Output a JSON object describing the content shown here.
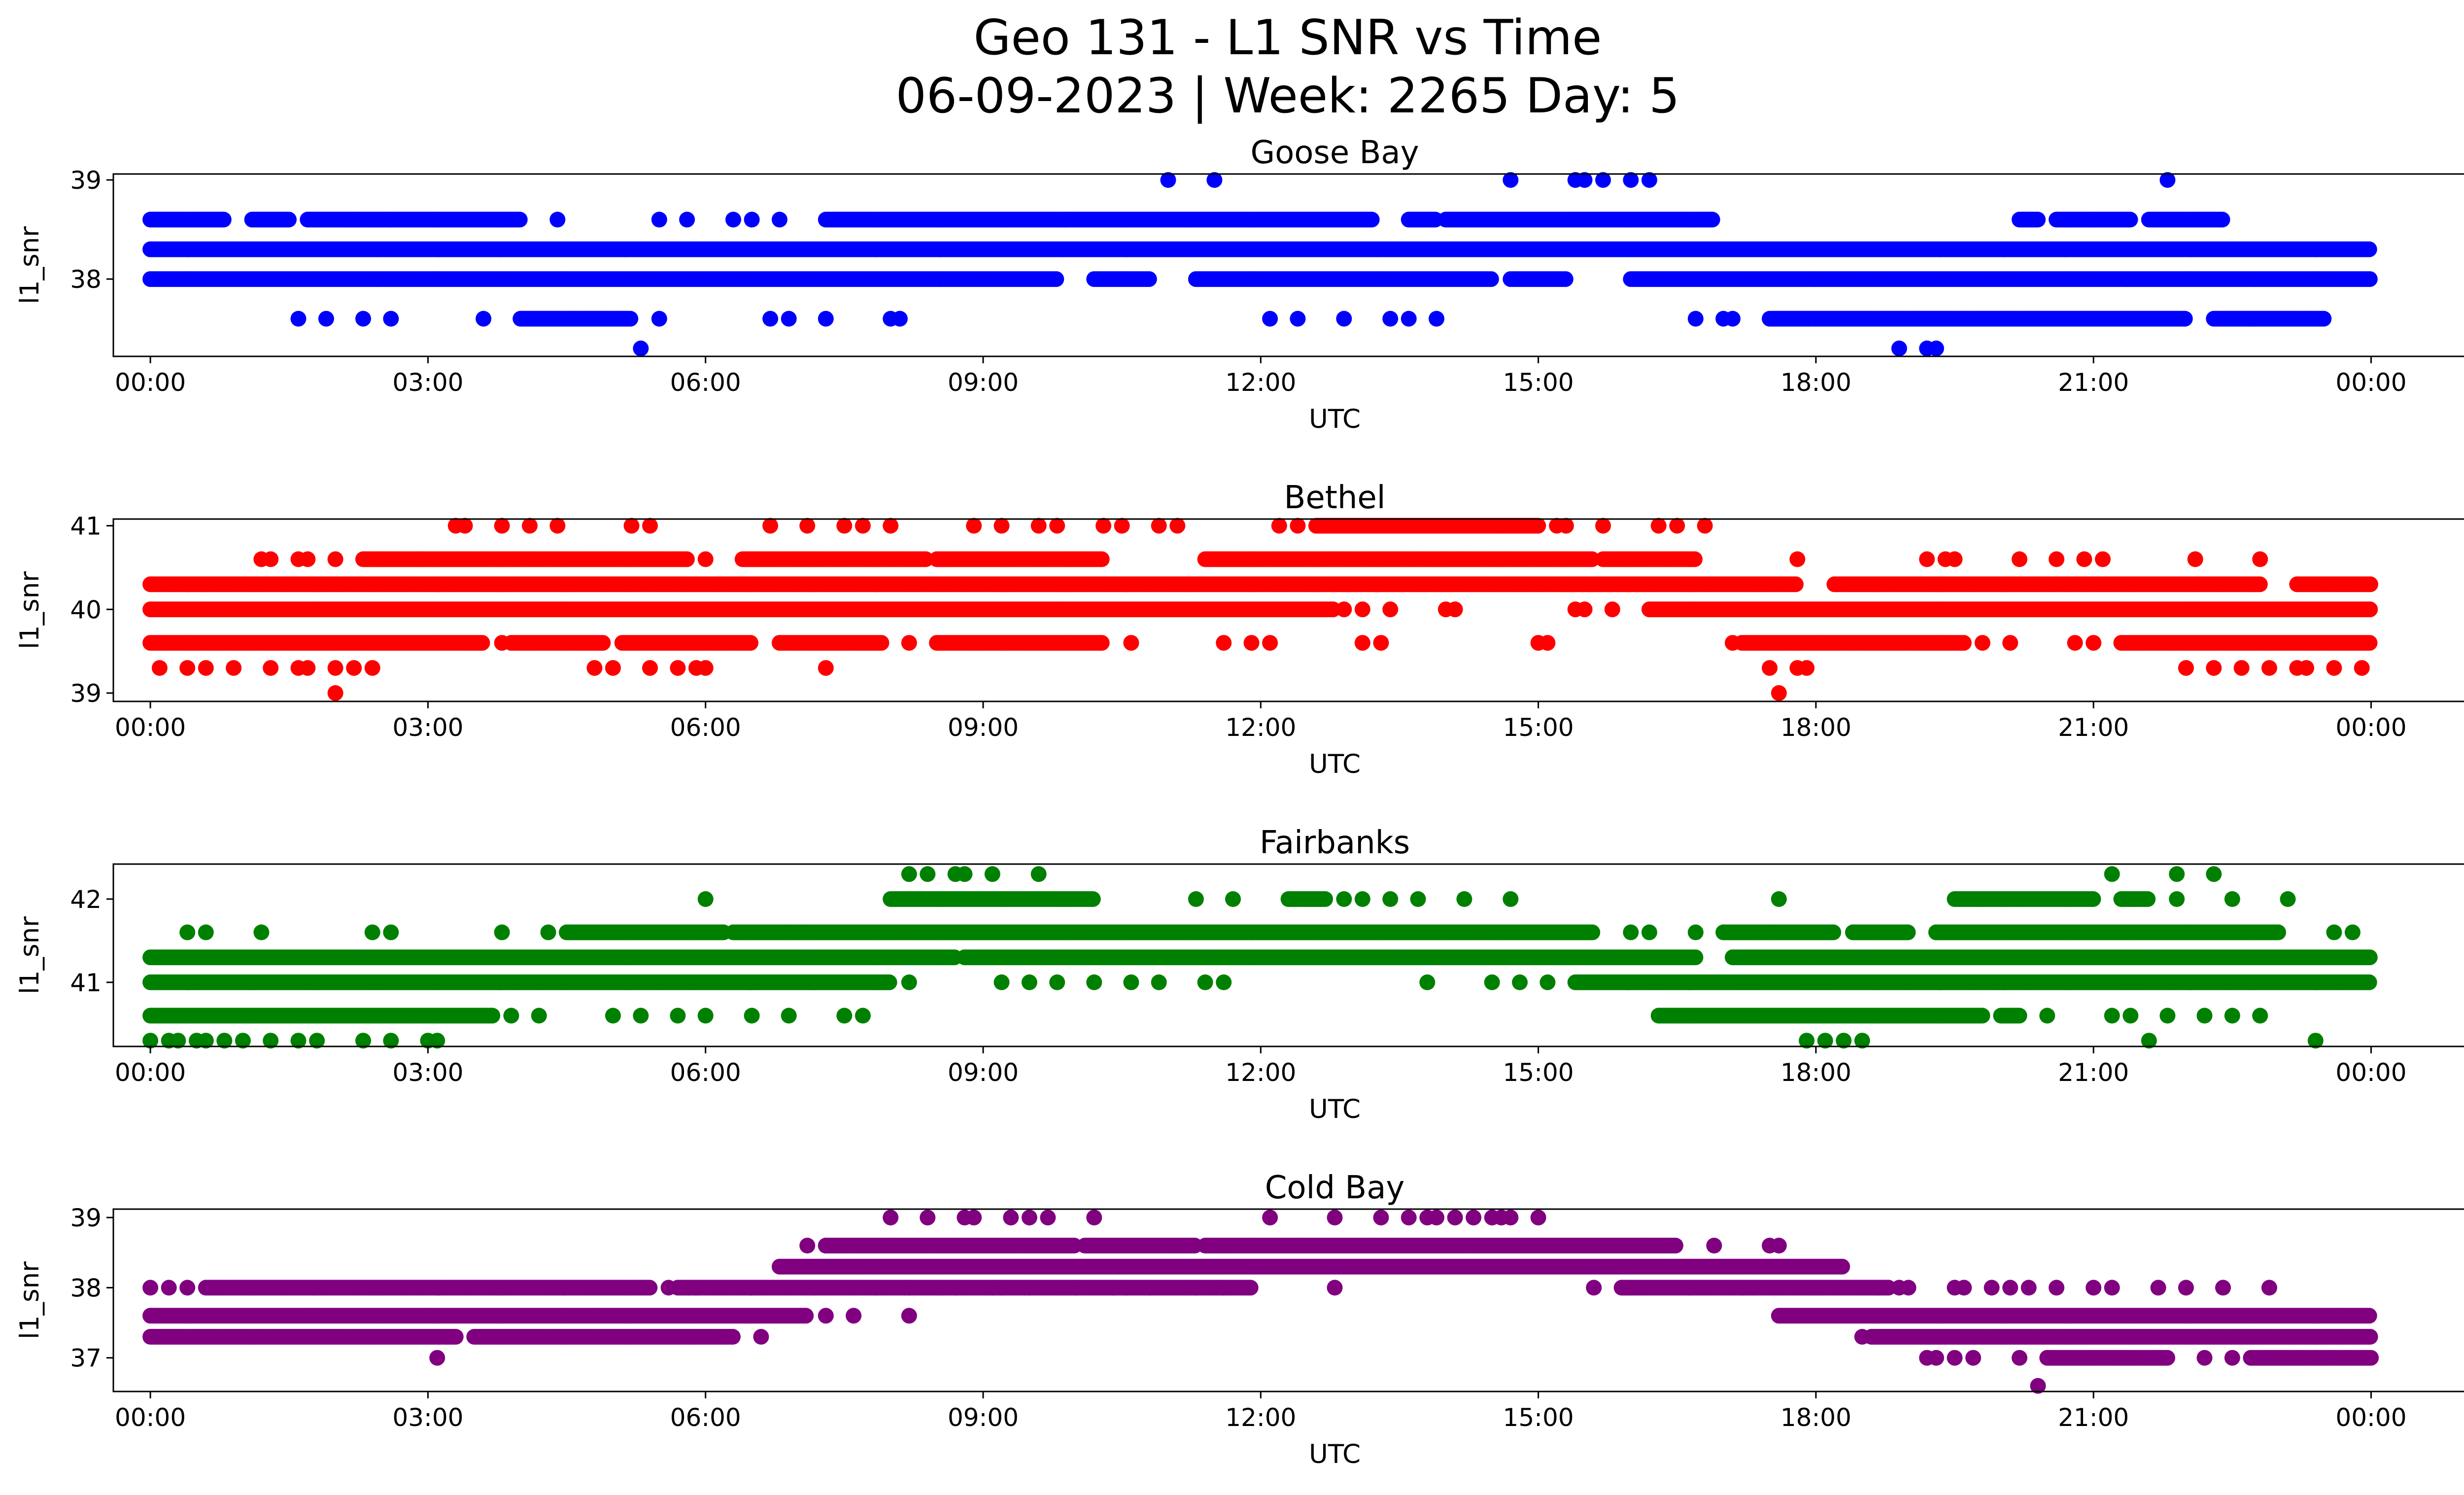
{
  "title": {
    "line1": "Geo 131 - L1 SNR vs Time",
    "line2": "06-09-2023 | Week: 2265 Day: 5"
  },
  "chart_data": [
    {
      "type": "scatter",
      "title": "Goose Bay",
      "xlabel": "UTC",
      "ylabel": "l1_snr",
      "color": "#0000ff",
      "xlim": [
        -0.4,
        26.0
      ],
      "ylim": [
        37.22,
        39.06
      ],
      "yticks": [
        38,
        39
      ],
      "xticks": [
        0,
        3,
        6,
        9,
        12,
        15,
        18,
        21,
        24
      ],
      "xtick_labels": [
        "00:00",
        "03:00",
        "06:00",
        "09:00",
        "12:00",
        "15:00",
        "18:00",
        "21:00",
        "00:00"
      ],
      "bands": [
        {
          "y": 38.3,
          "ranges": [
            [
              0,
              24
            ]
          ]
        },
        {
          "y": 38.0,
          "ranges": [
            [
              0,
              9.8
            ],
            [
              10.2,
              10.8
            ],
            [
              11.3,
              14.5
            ],
            [
              14.7,
              15.3
            ],
            [
              16.0,
              24
            ]
          ]
        },
        {
          "y": 38.6,
          "ranges": [
            [
              0,
              0.8
            ],
            [
              1.1,
              1.5
            ],
            [
              1.7,
              2.1
            ],
            [
              2.1,
              4.0
            ],
            [
              7.3,
              9.9
            ],
            [
              9.9,
              13.2
            ],
            [
              13.6,
              13.9
            ],
            [
              14.0,
              16.0
            ],
            [
              16.0,
              16.9
            ],
            [
              20.2,
              20.4
            ],
            [
              20.6,
              21.0
            ],
            [
              21.0,
              21.4
            ],
            [
              21.6,
              22.4
            ]
          ]
        },
        {
          "y": 37.6,
          "ranges": [
            [
              4.0,
              5.2
            ],
            [
              17.5,
              22.0
            ],
            [
              22.3,
              23.5
            ]
          ]
        }
      ],
      "points": [
        {
          "y": 38.6,
          "x": [
            2.2,
            2.6,
            3.1,
            4.4,
            5.5,
            5.8,
            6.3,
            6.5,
            6.8
          ]
        },
        {
          "y": 37.6,
          "x": [
            1.6,
            1.9,
            2.3,
            2.6,
            3.6,
            5.5,
            6.7,
            6.9,
            7.3,
            8.0,
            8.1,
            12.1,
            12.4,
            12.9,
            13.4,
            13.6,
            13.9,
            16.7,
            17.0,
            17.1
          ]
        },
        {
          "y": 39.0,
          "x": [
            11.0,
            11.5,
            14.7,
            15.4,
            15.5,
            15.7,
            16.0,
            16.2,
            21.8
          ]
        },
        {
          "y": 37.3,
          "x": [
            5.3,
            18.9,
            19.2,
            19.3
          ]
        }
      ]
    },
    {
      "type": "scatter",
      "title": "Bethel",
      "xlabel": "UTC",
      "ylabel": "l1_snr",
      "color": "#ff0000",
      "xlim": [
        -0.4,
        26.0
      ],
      "ylim": [
        38.9,
        41.08
      ],
      "yticks": [
        39,
        40,
        41
      ],
      "xticks": [
        0,
        3,
        6,
        9,
        12,
        15,
        18,
        21,
        24
      ],
      "xtick_labels": [
        "00:00",
        "03:00",
        "06:00",
        "09:00",
        "12:00",
        "15:00",
        "18:00",
        "21:00",
        "00:00"
      ],
      "bands": [
        {
          "y": 40.0,
          "ranges": [
            [
              0,
              12.8
            ],
            [
              16.2,
              24
            ]
          ]
        },
        {
          "y": 40.3,
          "ranges": [
            [
              0,
              0.6
            ],
            [
              0.6,
              17.8
            ],
            [
              18.2,
              22.8
            ],
            [
              23.2,
              24
            ]
          ]
        },
        {
          "y": 39.6,
          "ranges": [
            [
              0,
              3.6
            ],
            [
              3.9,
              4.9
            ],
            [
              5.1,
              6.5
            ],
            [
              6.8,
              7.9
            ],
            [
              8.5,
              10.3
            ],
            [
              17.2,
              19.6
            ],
            [
              21.3,
              24
            ]
          ]
        },
        {
          "y": 40.6,
          "ranges": [
            [
              2.3,
              2.9
            ],
            [
              2.9,
              4.5
            ],
            [
              4.5,
              5.8
            ],
            [
              6.4,
              8.4
            ],
            [
              8.5,
              10.3
            ],
            [
              11.4,
              15.6
            ],
            [
              15.7,
              16.7
            ]
          ]
        },
        {
          "y": 41.0,
          "ranges": [
            [
              12.6,
              15.0
            ]
          ]
        }
      ],
      "points": [
        {
          "y": 39.3,
          "x": [
            0.1,
            0.4,
            0.6,
            0.9,
            1.3,
            1.6,
            1.7,
            2.0,
            2.2,
            2.4,
            4.8,
            5.0,
            5.4,
            5.7,
            5.9,
            6.0,
            7.3,
            17.5,
            17.8,
            17.9,
            22.0,
            22.3,
            22.6,
            22.9,
            23.2,
            23.3,
            23.6,
            23.9
          ]
        },
        {
          "y": 39.0,
          "x": [
            2.0,
            17.6
          ]
        },
        {
          "y": 39.6,
          "x": [
            3.8,
            8.2,
            10.6,
            11.6,
            11.9,
            12.1,
            13.1,
            13.3,
            15.0,
            15.1,
            17.1,
            19.8,
            20.1,
            20.8,
            21.0
          ]
        },
        {
          "y": 40.0,
          "x": [
            12.9,
            13.1,
            13.4,
            14.0,
            14.1,
            15.4,
            15.5,
            15.8
          ]
        },
        {
          "y": 40.6,
          "x": [
            1.2,
            1.3,
            1.6,
            1.7,
            2.0,
            6.0,
            17.8,
            19.2,
            19.4,
            19.5,
            20.2,
            20.6,
            20.9,
            21.1,
            22.1,
            22.8
          ]
        },
        {
          "y": 41.0,
          "x": [
            3.3,
            3.4,
            3.8,
            4.1,
            4.4,
            5.2,
            5.4,
            6.7,
            7.1,
            7.5,
            7.7,
            8.0,
            8.9,
            9.2,
            9.6,
            9.8,
            10.3,
            10.5,
            10.9,
            11.1,
            12.2,
            12.4,
            15.2,
            15.3,
            15.7,
            16.3,
            16.5,
            16.8
          ]
        }
      ]
    },
    {
      "type": "scatter",
      "title": "Fairbanks",
      "xlabel": "UTC",
      "ylabel": "l1_snr",
      "color": "#008000",
      "xlim": [
        -0.4,
        26.0
      ],
      "ylim": [
        40.23,
        42.42
      ],
      "yticks": [
        41,
        42
      ],
      "xticks": [
        0,
        3,
        6,
        9,
        12,
        15,
        18,
        21,
        24
      ],
      "xtick_labels": [
        "00:00",
        "03:00",
        "06:00",
        "09:00",
        "12:00",
        "15:00",
        "18:00",
        "21:00",
        "00:00"
      ],
      "bands": [
        {
          "y": 41.0,
          "ranges": [
            [
              0,
              8.0
            ],
            [
              15.4,
              24
            ]
          ]
        },
        {
          "y": 41.3,
          "ranges": [
            [
              0,
              8.7
            ],
            [
              8.8,
              16.7
            ],
            [
              17.1,
              24
            ]
          ]
        },
        {
          "y": 40.6,
          "ranges": [
            [
              0,
              3.7
            ],
            [
              16.3,
              19.8
            ],
            [
              20.0,
              20.2
            ]
          ]
        },
        {
          "y": 41.6,
          "ranges": [
            [
              4.5,
              6.2
            ],
            [
              6.3,
              15.6
            ],
            [
              17.0,
              18.2
            ],
            [
              18.4,
              19.0
            ],
            [
              19.3,
              23.0
            ]
          ]
        },
        {
          "y": 42.0,
          "ranges": [
            [
              8.0,
              9.9
            ],
            [
              9.9,
              10.2
            ],
            [
              12.3,
              12.7
            ],
            [
              19.5,
              21.0
            ],
            [
              21.3,
              21.6
            ]
          ]
        }
      ],
      "points": [
        {
          "y": 40.3,
          "x": [
            0.0,
            0.2,
            0.3,
            0.5,
            0.6,
            0.8,
            1.0,
            1.3,
            1.6,
            1.8,
            2.3,
            2.6,
            3.0,
            3.1,
            17.9,
            18.1,
            18.3,
            18.5,
            21.6,
            23.4
          ]
        },
        {
          "y": 40.6,
          "x": [
            3.9,
            4.2,
            5.0,
            5.3,
            5.7,
            6.0,
            6.5,
            6.9,
            7.5,
            7.7,
            20.5,
            21.2,
            21.4,
            21.8,
            22.2,
            22.5,
            22.8
          ]
        },
        {
          "y": 41.0,
          "x": [
            8.2,
            9.2,
            9.5,
            9.8,
            10.2,
            10.6,
            10.9,
            11.4,
            11.6,
            13.8,
            14.5,
            14.8,
            15.1
          ]
        },
        {
          "y": 41.6,
          "x": [
            0.4,
            0.6,
            1.2,
            2.4,
            2.6,
            3.8,
            4.3,
            6.9,
            7.1,
            16.0,
            16.2,
            16.7,
            17.5,
            19.3,
            23.6,
            23.8
          ]
        },
        {
          "y": 42.0,
          "x": [
            6.0,
            11.3,
            11.7,
            12.5,
            12.9,
            13.1,
            13.4,
            13.7,
            14.2,
            14.7,
            17.6,
            19.8,
            21.9,
            22.5,
            23.1
          ]
        },
        {
          "y": 42.3,
          "x": [
            8.2,
            8.4,
            8.7,
            8.8,
            9.1,
            9.6,
            21.2,
            21.9,
            22.3
          ]
        }
      ]
    },
    {
      "type": "scatter",
      "title": "Cold Bay",
      "xlabel": "UTC",
      "ylabel": "l1_snr",
      "color": "#800080",
      "xlim": [
        -0.4,
        26.0
      ],
      "ylim": [
        36.52,
        39.12
      ],
      "yticks": [
        37,
        38,
        39
      ],
      "xticks": [
        0,
        3,
        6,
        9,
        12,
        15,
        18,
        21,
        24
      ],
      "xtick_labels": [
        "00:00",
        "03:00",
        "06:00",
        "09:00",
        "12:00",
        "15:00",
        "18:00",
        "21:00",
        "00:00"
      ],
      "bands": [
        {
          "y": 37.6,
          "ranges": [
            [
              0,
              7.1
            ],
            [
              17.6,
              24
            ]
          ]
        },
        {
          "y": 37.3,
          "ranges": [
            [
              0,
              3.3
            ],
            [
              3.5,
              6.3
            ],
            [
              18.6,
              24
            ]
          ]
        },
        {
          "y": 38.0,
          "ranges": [
            [
              0.6,
              5.4
            ],
            [
              5.7,
              6.5
            ],
            [
              6.5,
              11.9
            ],
            [
              15.9,
              17.2
            ],
            [
              17.2,
              18.8
            ]
          ]
        },
        {
          "y": 38.3,
          "ranges": [
            [
              6.8,
              18.3
            ]
          ]
        },
        {
          "y": 38.6,
          "ranges": [
            [
              7.3,
              10.0
            ],
            [
              10.1,
              11.3
            ],
            [
              11.4,
              16.5
            ]
          ]
        },
        {
          "y": 37.0,
          "ranges": [
            [
              20.5,
              21.8
            ],
            [
              22.7,
              24
            ]
          ]
        }
      ],
      "points": [
        {
          "y": 38.0,
          "x": [
            0.0,
            0.2,
            0.4,
            5.6,
            5.9,
            8.2,
            8.7,
            9.1,
            9.5,
            10.0,
            10.4,
            10.8,
            11.3,
            11.6,
            12.8,
            15.6,
            18.9,
            19.0,
            19.5,
            19.6,
            19.9,
            20.1,
            20.3,
            20.6,
            21.0,
            21.2,
            21.7,
            22.0,
            22.4,
            22.9
          ]
        },
        {
          "y": 38.6,
          "x": [
            7.1,
            7.3,
            16.9,
            17.5,
            17.6
          ]
        },
        {
          "y": 39.0,
          "x": [
            8.0,
            8.4,
            8.8,
            8.9,
            9.3,
            9.5,
            9.7,
            10.2,
            12.1,
            12.8,
            13.3,
            13.6,
            13.8,
            13.9,
            14.1,
            14.3,
            14.5,
            14.6,
            14.7,
            15.0
          ]
        },
        {
          "y": 37.6,
          "x": [
            7.3,
            7.6,
            8.2
          ]
        },
        {
          "y": 37.3,
          "x": [
            6.6,
            18.5
          ]
        },
        {
          "y": 37.0,
          "x": [
            3.1,
            19.2,
            19.3,
            19.5,
            19.7,
            20.2,
            22.2,
            22.5
          ]
        },
        {
          "y": 36.6,
          "x": [
            20.4
          ]
        }
      ]
    }
  ]
}
